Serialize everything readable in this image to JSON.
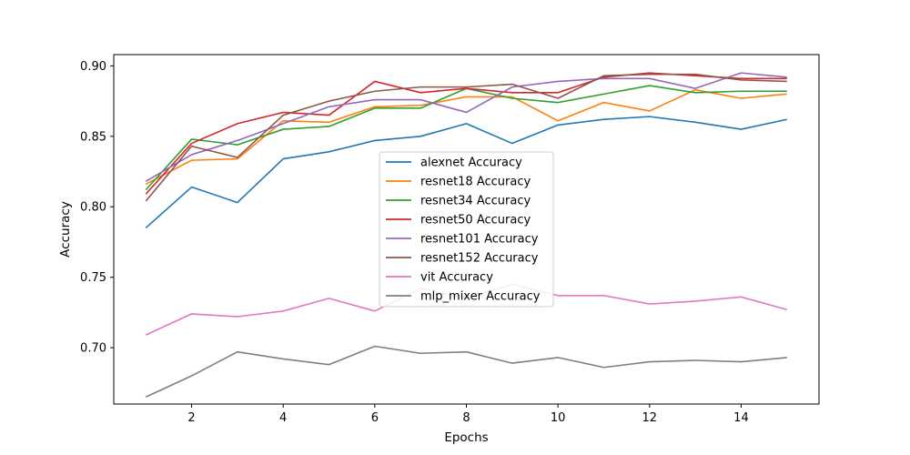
{
  "chart_data": {
    "type": "line",
    "title": "",
    "xlabel": "Epochs",
    "ylabel": "Accuracy",
    "xlim": [
      0.3,
      15.7
    ],
    "ylim": [
      0.66,
      0.908
    ],
    "xticks": [
      2,
      4,
      6,
      8,
      10,
      12,
      14
    ],
    "yticks": [
      0.7,
      0.75,
      0.8,
      0.85,
      0.9
    ],
    "xtick_labels": [
      "2",
      "4",
      "6",
      "8",
      "10",
      "12",
      "14"
    ],
    "ytick_labels": [
      "0.70",
      "0.75",
      "0.80",
      "0.85",
      "0.90"
    ],
    "grid": false,
    "legend_position": "center",
    "x": [
      1,
      2,
      3,
      4,
      5,
      6,
      7,
      8,
      9,
      10,
      11,
      12,
      13,
      14,
      15
    ],
    "series": [
      {
        "name": "alexnet Accuracy",
        "color": "#1f77b4",
        "values": [
          0.785,
          0.814,
          0.803,
          0.834,
          0.839,
          0.847,
          0.85,
          0.859,
          0.845,
          0.858,
          0.862,
          0.864,
          0.86,
          0.855,
          0.862
        ]
      },
      {
        "name": "resnet18 Accuracy",
        "color": "#ff7f0e",
        "values": [
          0.816,
          0.833,
          0.834,
          0.861,
          0.86,
          0.871,
          0.872,
          0.878,
          0.878,
          0.861,
          0.874,
          0.868,
          0.883,
          0.877,
          0.88
        ]
      },
      {
        "name": "resnet34 Accuracy",
        "color": "#2ca02c",
        "values": [
          0.812,
          0.848,
          0.844,
          0.855,
          0.857,
          0.87,
          0.87,
          0.884,
          0.877,
          0.874,
          0.88,
          0.886,
          0.881,
          0.882,
          0.882
        ]
      },
      {
        "name": "resnet50 Accuracy",
        "color": "#d62728",
        "values": [
          0.809,
          0.845,
          0.859,
          0.867,
          0.865,
          0.889,
          0.881,
          0.884,
          0.881,
          0.881,
          0.892,
          0.895,
          0.893,
          0.891,
          0.891
        ]
      },
      {
        "name": "resnet101 Accuracy",
        "color": "#9467bd",
        "values": [
          0.818,
          0.837,
          0.847,
          0.859,
          0.871,
          0.876,
          0.876,
          0.867,
          0.885,
          0.889,
          0.891,
          0.891,
          0.884,
          0.895,
          0.892
        ]
      },
      {
        "name": "resnet152 Accuracy",
        "color": "#8c564b",
        "values": [
          0.804,
          0.843,
          0.835,
          0.865,
          0.875,
          0.882,
          0.885,
          0.885,
          0.887,
          0.877,
          0.893,
          0.894,
          0.894,
          0.89,
          0.889
        ]
      },
      {
        "name": "vit Accuracy",
        "color": "#e377c2",
        "values": [
          0.709,
          0.724,
          0.722,
          0.726,
          0.735,
          0.726,
          0.742,
          0.735,
          0.745,
          0.737,
          0.737,
          0.731,
          0.733,
          0.736,
          0.727
        ]
      },
      {
        "name": "mlp_mixer Accuracy",
        "color": "#7f7f7f",
        "values": [
          0.665,
          0.68,
          0.697,
          0.692,
          0.688,
          0.701,
          0.696,
          0.697,
          0.689,
          0.693,
          0.686,
          0.69,
          0.691,
          0.69,
          0.693
        ]
      }
    ]
  }
}
